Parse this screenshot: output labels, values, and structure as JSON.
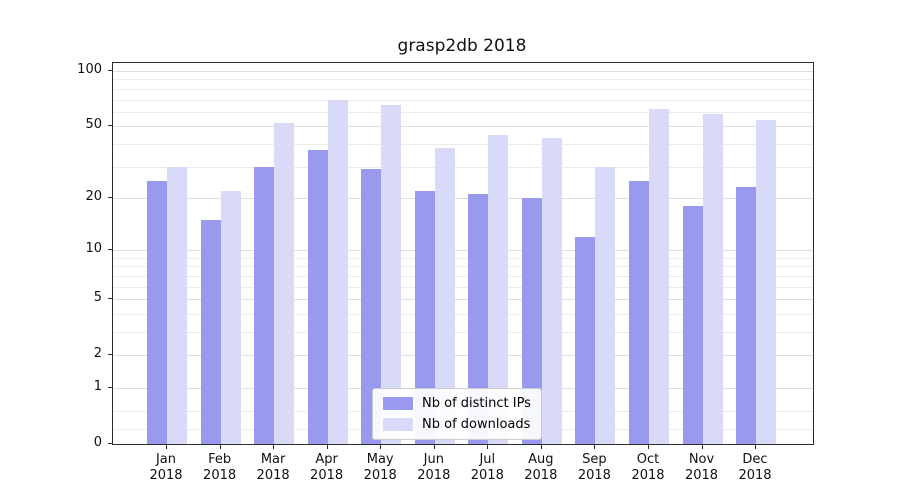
{
  "chart_data": {
    "type": "bar",
    "title": "grasp2db 2018",
    "year": "2018",
    "categories": [
      "Jan",
      "Feb",
      "Mar",
      "Apr",
      "May",
      "Jun",
      "Jul",
      "Aug",
      "Sep",
      "Oct",
      "Nov",
      "Dec"
    ],
    "series": [
      {
        "name": "Nb of distinct IPs",
        "color": "#9999ee",
        "values": [
          25,
          15,
          30,
          37,
          29,
          22,
          21,
          20,
          12,
          25,
          18,
          23
        ]
      },
      {
        "name": "Nb of downloads",
        "color": "#d9d9f8",
        "values": [
          30,
          22,
          52,
          70,
          65,
          38,
          45,
          43,
          30,
          62,
          58,
          54
        ]
      }
    ],
    "yscale": "log1p",
    "yticks": [
      0,
      1,
      2,
      5,
      10,
      20,
      50,
      100
    ],
    "minor_yticks": [
      0.2,
      0.5,
      3,
      4,
      6,
      7,
      8,
      9,
      30,
      40,
      60,
      70,
      80,
      90
    ],
    "ylim": [
      0,
      110
    ],
    "grid": true,
    "legend_position": "lower center",
    "colors": {
      "axis": "#2b2b2b",
      "grid_major": "#dedede",
      "grid_minor": "#ececec"
    }
  }
}
